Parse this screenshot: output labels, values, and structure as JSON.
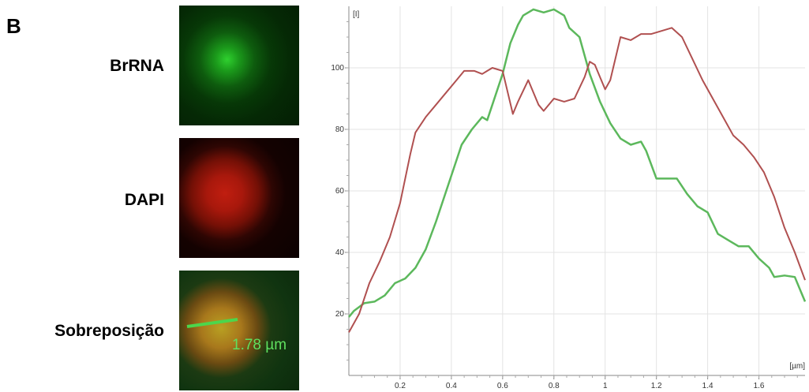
{
  "panel_letter": "B",
  "rows": [
    {
      "label": "BrRNA"
    },
    {
      "label": "DAPI"
    },
    {
      "label": "Sobreposição"
    }
  ],
  "scale_bar_label": "1.78 µm",
  "colors": {
    "green_series": "#5cb85c",
    "red_series": "#b05050",
    "grid": "#e3e3e3"
  },
  "chart_data": {
    "type": "line",
    "title": "",
    "ylabel": "[I]",
    "xlabel": "[µm]",
    "xlim": [
      0,
      1.78
    ],
    "ylim": [
      0,
      120
    ],
    "x_ticks": [
      0.2,
      0.4,
      0.6,
      0.8,
      1,
      1.2,
      1.4,
      1.6
    ],
    "y_ticks": [
      20,
      40,
      60,
      80,
      100
    ],
    "grid": true,
    "series": [
      {
        "color": "green",
        "points": [
          [
            0,
            19
          ],
          [
            0.02,
            21
          ],
          [
            0.06,
            23.5
          ],
          [
            0.1,
            24
          ],
          [
            0.14,
            26
          ],
          [
            0.18,
            30
          ],
          [
            0.22,
            31.5
          ],
          [
            0.26,
            35
          ],
          [
            0.3,
            41
          ],
          [
            0.34,
            50
          ],
          [
            0.38,
            60
          ],
          [
            0.42,
            70
          ],
          [
            0.44,
            75
          ],
          [
            0.48,
            80
          ],
          [
            0.52,
            84
          ],
          [
            0.54,
            83
          ],
          [
            0.56,
            88
          ],
          [
            0.6,
            98
          ],
          [
            0.63,
            108
          ],
          [
            0.66,
            114
          ],
          [
            0.68,
            117
          ],
          [
            0.72,
            119
          ],
          [
            0.76,
            118
          ],
          [
            0.8,
            119
          ],
          [
            0.84,
            117
          ],
          [
            0.86,
            113
          ],
          [
            0.9,
            110
          ],
          [
            0.94,
            98
          ],
          [
            0.98,
            89
          ],
          [
            1.02,
            82
          ],
          [
            1.06,
            77
          ],
          [
            1.1,
            75
          ],
          [
            1.14,
            76
          ],
          [
            1.16,
            73
          ],
          [
            1.2,
            64
          ],
          [
            1.28,
            64
          ],
          [
            1.32,
            59
          ],
          [
            1.36,
            55
          ],
          [
            1.4,
            53
          ],
          [
            1.44,
            46
          ],
          [
            1.48,
            44
          ],
          [
            1.52,
            42
          ],
          [
            1.56,
            42
          ],
          [
            1.6,
            38
          ],
          [
            1.64,
            35
          ],
          [
            1.66,
            32
          ],
          [
            1.7,
            32.5
          ],
          [
            1.74,
            32
          ],
          [
            1.78,
            24
          ]
        ]
      },
      {
        "color": "red",
        "points": [
          [
            0,
            14
          ],
          [
            0.04,
            20
          ],
          [
            0.08,
            30
          ],
          [
            0.12,
            37
          ],
          [
            0.16,
            45
          ],
          [
            0.2,
            56
          ],
          [
            0.24,
            72
          ],
          [
            0.26,
            79
          ],
          [
            0.3,
            84
          ],
          [
            0.34,
            88
          ],
          [
            0.38,
            92
          ],
          [
            0.42,
            96
          ],
          [
            0.45,
            99
          ],
          [
            0.49,
            99
          ],
          [
            0.52,
            98
          ],
          [
            0.54,
            99
          ],
          [
            0.56,
            100
          ],
          [
            0.6,
            99
          ],
          [
            0.62,
            92
          ],
          [
            0.64,
            85
          ],
          [
            0.66,
            89
          ],
          [
            0.7,
            96
          ],
          [
            0.74,
            88
          ],
          [
            0.76,
            86
          ],
          [
            0.8,
            90
          ],
          [
            0.84,
            89
          ],
          [
            0.88,
            90
          ],
          [
            0.92,
            97
          ],
          [
            0.94,
            102
          ],
          [
            0.96,
            101
          ],
          [
            1.0,
            93
          ],
          [
            1.02,
            96
          ],
          [
            1.06,
            110
          ],
          [
            1.1,
            109
          ],
          [
            1.14,
            111
          ],
          [
            1.18,
            111
          ],
          [
            1.22,
            112
          ],
          [
            1.26,
            113
          ],
          [
            1.3,
            110
          ],
          [
            1.34,
            103
          ],
          [
            1.38,
            96
          ],
          [
            1.42,
            90
          ],
          [
            1.46,
            84
          ],
          [
            1.5,
            78
          ],
          [
            1.54,
            75
          ],
          [
            1.58,
            71
          ],
          [
            1.62,
            66
          ],
          [
            1.66,
            58
          ],
          [
            1.7,
            48
          ],
          [
            1.74,
            40
          ],
          [
            1.78,
            31
          ]
        ]
      }
    ]
  }
}
